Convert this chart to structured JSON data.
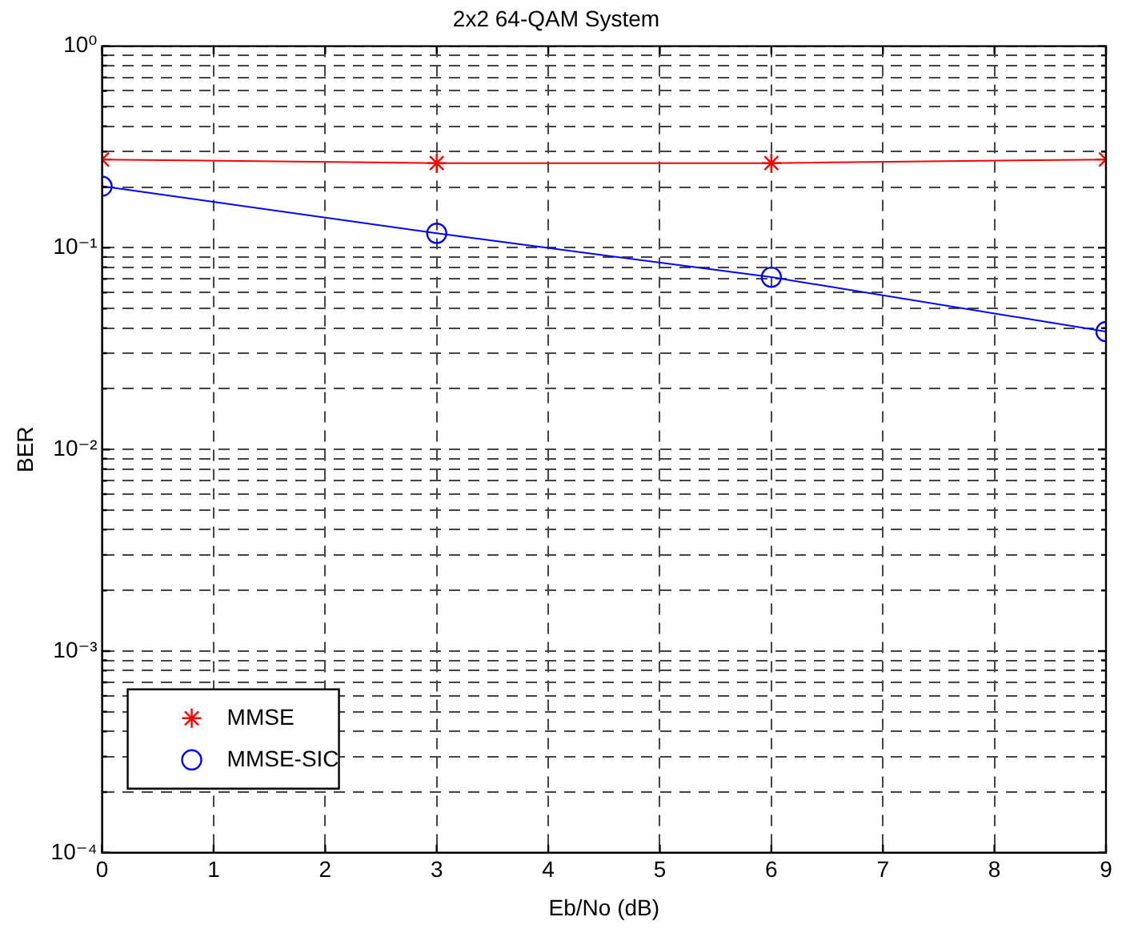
{
  "chart_data": {
    "type": "line",
    "title": "2x2 64-QAM System",
    "xlabel": "Eb/No (dB)",
    "ylabel": "BER",
    "x": [
      0,
      3,
      6,
      9
    ],
    "series": [
      {
        "name": "MMSE",
        "color": "#ff0000",
        "values": [
          0.274,
          0.263,
          0.263,
          0.274
        ],
        "marker": "cross"
      },
      {
        "name": "MMSE-SIC",
        "color": "#0000ff",
        "values": [
          0.202,
          0.118,
          0.0715,
          0.0384
        ],
        "marker": "circle"
      }
    ],
    "log": "y",
    "xlim": [
      0,
      9
    ],
    "xticks": [
      0,
      1,
      2,
      3,
      4,
      5,
      6,
      7,
      8,
      9
    ],
    "ylim": [
      0.0001,
      1
    ],
    "yticks": [
      {
        "value": 0.0001,
        "label": "10⁻⁴"
      },
      {
        "value": 0.0002,
        "label": null
      },
      {
        "value": 0.0003,
        "label": null
      },
      {
        "value": 0.0004,
        "label": null
      },
      {
        "value": 0.0005,
        "label": null
      },
      {
        "value": 0.0006,
        "label": null
      },
      {
        "value": 0.0007,
        "label": null
      },
      {
        "value": 0.0008,
        "label": null
      },
      {
        "value": 0.0009,
        "label": null
      },
      {
        "value": 0.001,
        "label": "10⁻³"
      },
      {
        "value": 0.002,
        "label": null
      },
      {
        "value": 0.003,
        "label": null
      },
      {
        "value": 0.004,
        "label": null
      },
      {
        "value": 0.005,
        "label": null
      },
      {
        "value": 0.006,
        "label": null
      },
      {
        "value": 0.007,
        "label": null
      },
      {
        "value": 0.008,
        "label": null
      },
      {
        "value": 0.009,
        "label": null
      },
      {
        "value": 0.01,
        "label": "10⁻²"
      },
      {
        "value": 0.02,
        "label": null
      },
      {
        "value": 0.03,
        "label": null
      },
      {
        "value": 0.04,
        "label": null
      },
      {
        "value": 0.05,
        "label": null
      },
      {
        "value": 0.06,
        "label": null
      },
      {
        "value": 0.07,
        "label": null
      },
      {
        "value": 0.08,
        "label": null
      },
      {
        "value": 0.09,
        "label": null
      },
      {
        "value": 0.1,
        "label": "10⁻¹"
      },
      {
        "value": 0.2,
        "label": null
      },
      {
        "value": 0.3,
        "label": null
      },
      {
        "value": 0.4,
        "label": null
      },
      {
        "value": 0.5,
        "label": null
      },
      {
        "value": 0.6,
        "label": null
      },
      {
        "value": 0.7,
        "label": null
      },
      {
        "value": 0.8,
        "label": null
      },
      {
        "value": 0.9,
        "label": null
      },
      {
        "value": 1,
        "label": "10⁰"
      }
    ],
    "grid": true,
    "legend": "bottom left",
    "line_style": "solid"
  }
}
